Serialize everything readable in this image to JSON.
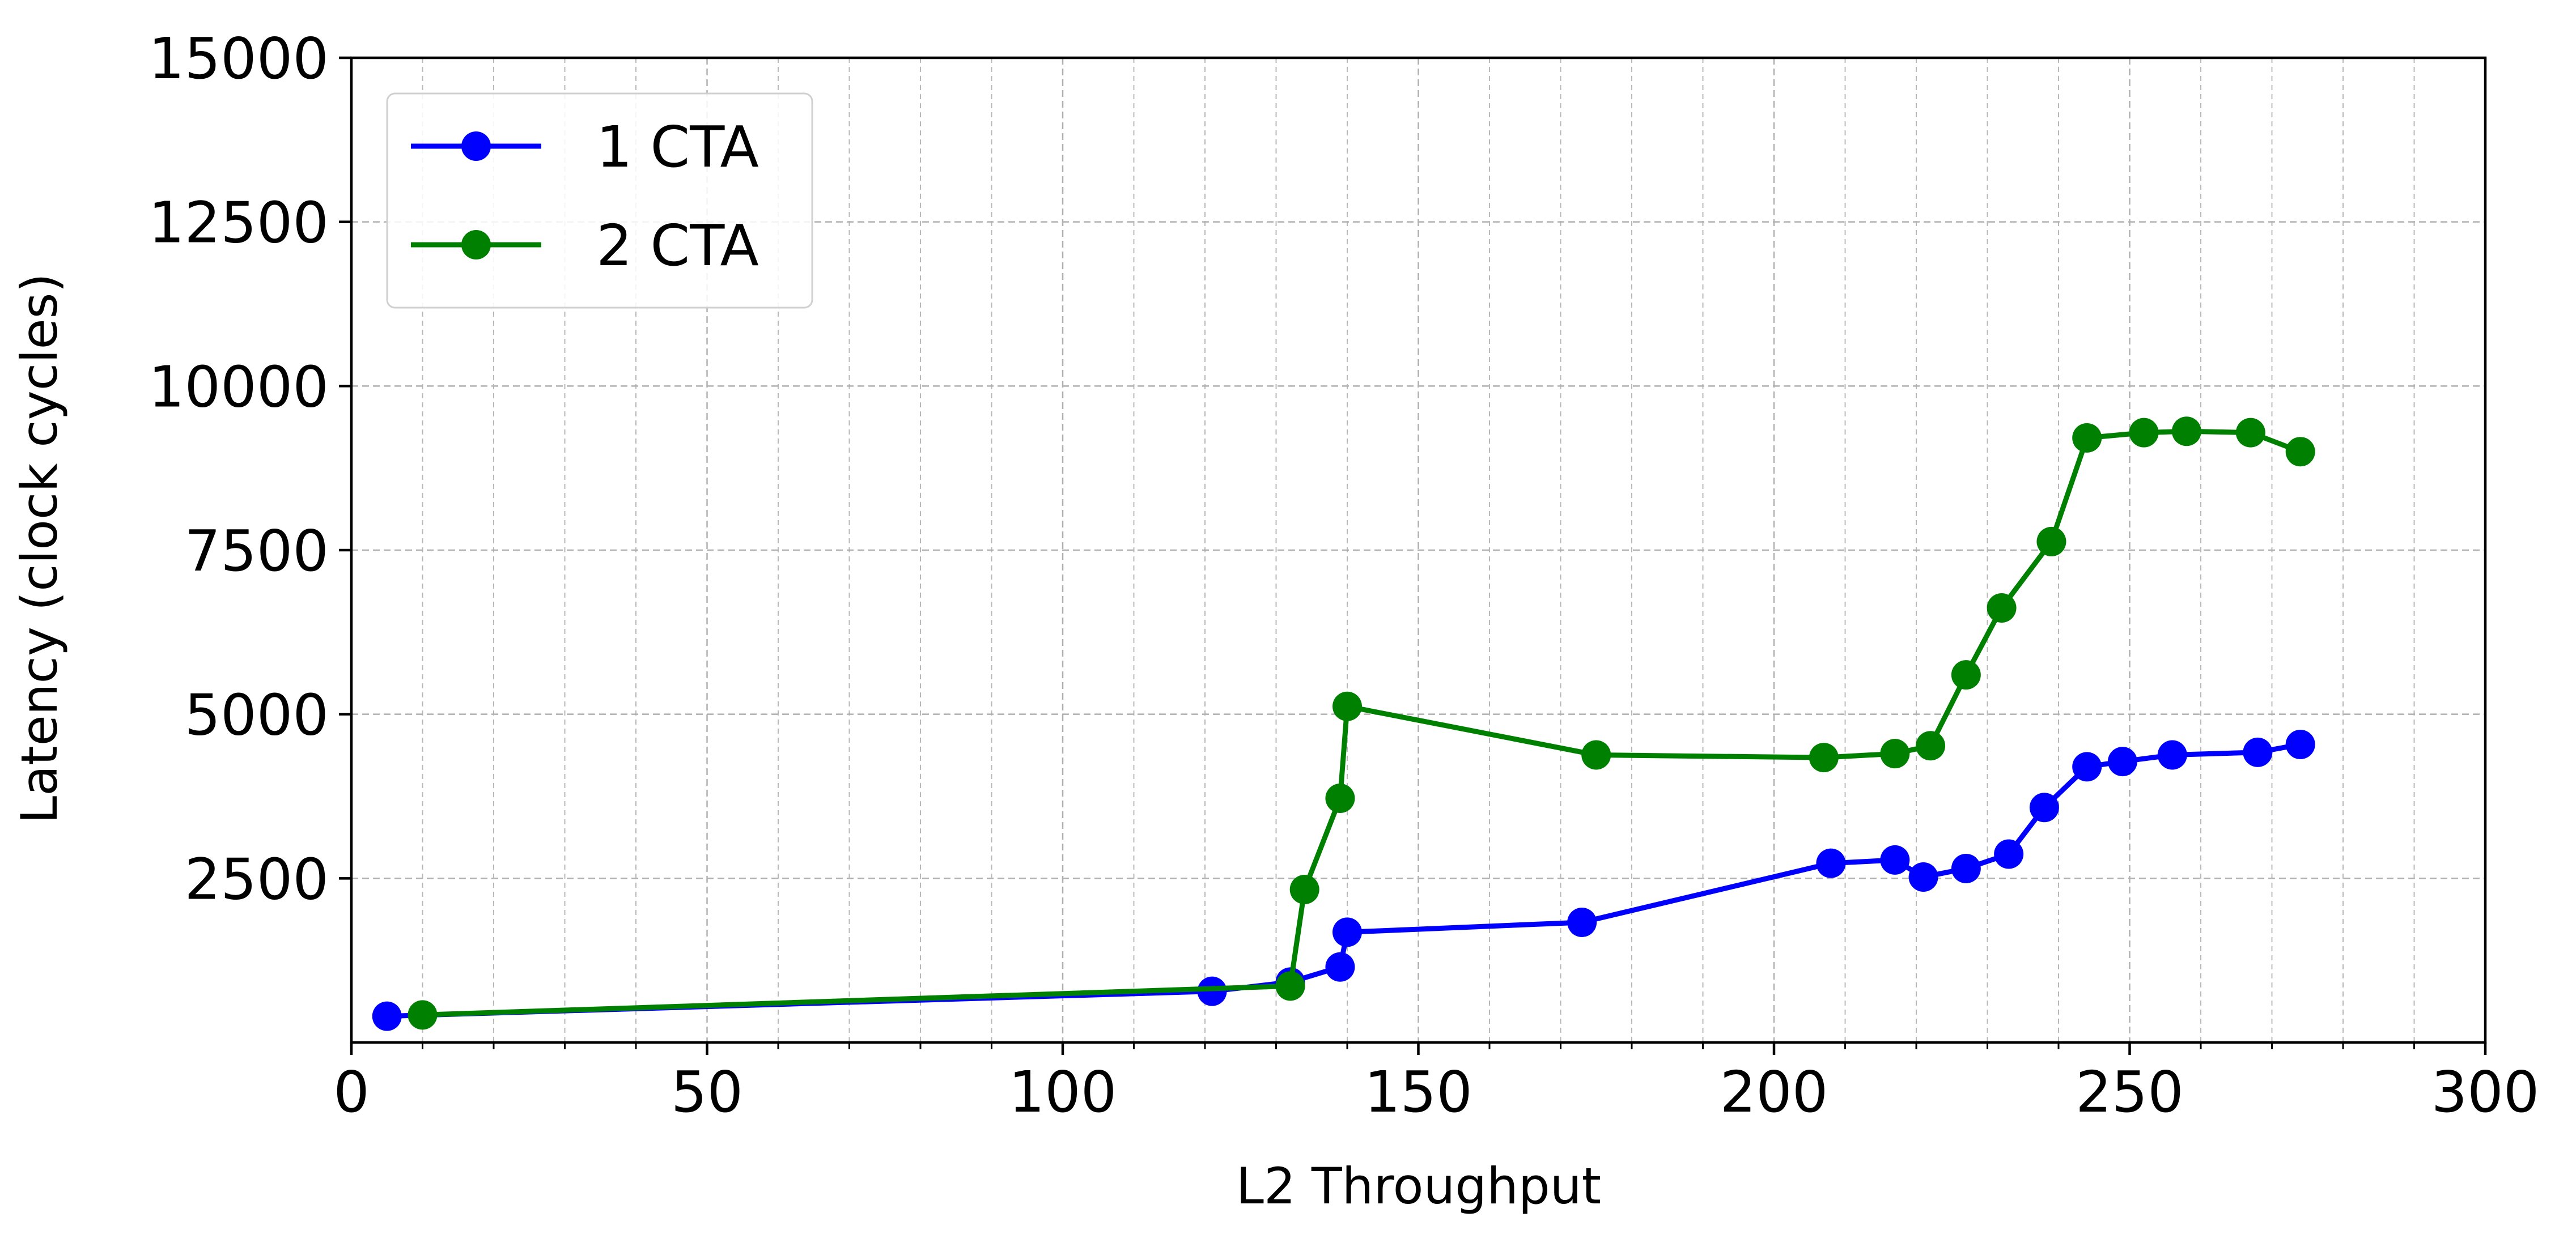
{
  "chart_data": {
    "type": "line",
    "title": "",
    "xlabel": "L2 Throughput",
    "ylabel": "Latency (clock cycles)",
    "xlim": [
      0,
      300
    ],
    "ylim": [
      0,
      15000
    ],
    "xticks": [
      0,
      50,
      100,
      150,
      200,
      250,
      300
    ],
    "yticks": [
      2500,
      5000,
      7500,
      10000,
      12500,
      15000
    ],
    "xtick_labels": [
      "0",
      "50",
      "100",
      "150",
      "200",
      "250",
      "300"
    ],
    "ytick_labels": [
      "2500",
      "5000",
      "7500",
      "10000",
      "12500",
      "15000"
    ],
    "x_minor_step": 10,
    "grid": true,
    "legend_position": "top-left",
    "series": [
      {
        "name": "1 CTA",
        "color": "#0000ff",
        "marker": "circle",
        "x": [
          5,
          121,
          132,
          139,
          140,
          173,
          208,
          217,
          221,
          227,
          233,
          238,
          244,
          249,
          256,
          268,
          274
        ],
        "y": [
          400,
          780,
          920,
          1150,
          1680,
          1830,
          2730,
          2780,
          2520,
          2650,
          2870,
          3580,
          4200,
          4280,
          4380,
          4420,
          4540
        ]
      },
      {
        "name": "2 CTA",
        "color": "#008000",
        "marker": "circle",
        "x": [
          10,
          132,
          134,
          139,
          140,
          175,
          207,
          217,
          222,
          227,
          232,
          239,
          244,
          252,
          258,
          267,
          274
        ],
        "y": [
          420,
          860,
          2330,
          3720,
          5120,
          4380,
          4340,
          4400,
          4520,
          5600,
          6620,
          7630,
          9210,
          9290,
          9310,
          9290,
          9000
        ]
      }
    ]
  }
}
